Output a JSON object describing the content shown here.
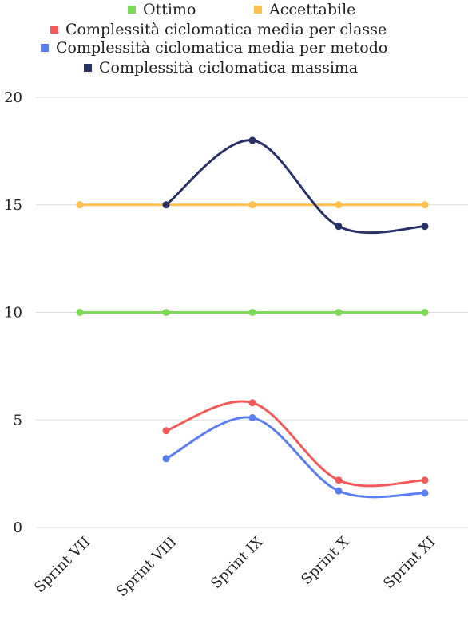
{
  "chart_data": {
    "type": "line",
    "categories": [
      "Sprint VII",
      "Sprint VIII",
      "Sprint IX",
      "Sprint X",
      "Sprint XI"
    ],
    "ylim": [
      0,
      20
    ],
    "yticks": [
      0,
      5,
      10,
      15,
      20
    ],
    "grid": true,
    "legend_position": "top",
    "series": [
      {
        "name": "Ottimo",
        "color": "#7ed957",
        "values": [
          10,
          10,
          10,
          10,
          10
        ]
      },
      {
        "name": "Accettabile",
        "color": "#ffbf4f",
        "values": [
          15,
          15,
          15,
          15,
          15
        ]
      },
      {
        "name": "Complessità ciclomatica media per classe",
        "color": "#f25a5a",
        "values": [
          null,
          4.5,
          5.8,
          2.2,
          2.2
        ]
      },
      {
        "name": "Complessità ciclomatica media per metodo",
        "color": "#5b7ff0",
        "values": [
          null,
          3.2,
          5.1,
          1.7,
          1.6
        ]
      },
      {
        "name": "Complessità ciclomatica massima",
        "color": "#293166",
        "values": [
          null,
          15,
          18,
          14,
          14
        ]
      }
    ]
  }
}
